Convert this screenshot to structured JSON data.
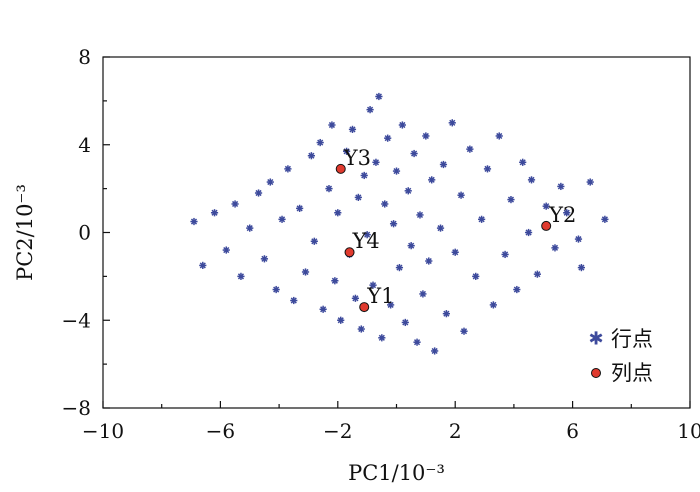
{
  "chart_data": {
    "type": "scatter",
    "title": "",
    "xlabel": "PC1/10⁻³",
    "ylabel": "PC2/10⁻³",
    "xlim": [
      -10,
      10
    ],
    "ylim": [
      -8,
      8
    ],
    "xticks": [
      -10,
      -6,
      -2,
      2,
      6,
      10
    ],
    "xtick_labels": [
      "−10",
      "−6",
      "−2",
      "2",
      "6",
      "10"
    ],
    "yticks": [
      -8,
      -4,
      0,
      4,
      8
    ],
    "ytick_labels": [
      "−8",
      "−4",
      "0",
      "4",
      "8"
    ],
    "grid": false,
    "legend": {
      "position": "bottom-right"
    },
    "series": [
      {
        "name": "行点",
        "marker": "star",
        "color": "#3d4a9c",
        "points": [
          [
            -6.9,
            0.5
          ],
          [
            -6.6,
            -1.5
          ],
          [
            -6.2,
            0.9
          ],
          [
            -5.8,
            -0.8
          ],
          [
            -5.5,
            1.3
          ],
          [
            -5.3,
            -2.0
          ],
          [
            -5.0,
            0.2
          ],
          [
            -4.7,
            1.8
          ],
          [
            -4.5,
            -1.2
          ],
          [
            -4.3,
            2.3
          ],
          [
            -4.1,
            -2.6
          ],
          [
            -3.9,
            0.6
          ],
          [
            -3.7,
            2.9
          ],
          [
            -3.5,
            -3.1
          ],
          [
            -3.3,
            1.1
          ],
          [
            -3.1,
            -1.8
          ],
          [
            -2.9,
            3.5
          ],
          [
            -2.8,
            -0.4
          ],
          [
            -2.6,
            4.1
          ],
          [
            -2.5,
            -3.5
          ],
          [
            -2.3,
            2.0
          ],
          [
            -2.2,
            4.9
          ],
          [
            -2.1,
            -2.2
          ],
          [
            -2.0,
            0.9
          ],
          [
            -1.9,
            -4.0
          ],
          [
            -1.7,
            3.7
          ],
          [
            -1.6,
            -1.0
          ],
          [
            -1.5,
            4.7
          ],
          [
            -1.4,
            -3.0
          ],
          [
            -1.3,
            1.6
          ],
          [
            -1.2,
            -4.4
          ],
          [
            -1.1,
            2.6
          ],
          [
            -1.0,
            -0.1
          ],
          [
            -0.9,
            5.6
          ],
          [
            -0.8,
            -2.4
          ],
          [
            -0.7,
            3.2
          ],
          [
            -0.6,
            6.2
          ],
          [
            -0.5,
            -4.8
          ],
          [
            -0.4,
            1.3
          ],
          [
            -0.3,
            4.3
          ],
          [
            -0.2,
            -3.3
          ],
          [
            -0.1,
            0.4
          ],
          [
            0.0,
            2.8
          ],
          [
            0.1,
            -1.6
          ],
          [
            0.2,
            4.9
          ],
          [
            0.3,
            -4.1
          ],
          [
            0.4,
            1.9
          ],
          [
            0.5,
            -0.6
          ],
          [
            0.6,
            3.6
          ],
          [
            0.7,
            -5.0
          ],
          [
            0.8,
            0.8
          ],
          [
            0.9,
            -2.8
          ],
          [
            1.0,
            4.4
          ],
          [
            1.1,
            -1.3
          ],
          [
            1.2,
            2.4
          ],
          [
            1.3,
            -5.4
          ],
          [
            1.5,
            0.2
          ],
          [
            1.6,
            3.1
          ],
          [
            1.7,
            -3.7
          ],
          [
            1.9,
            5.0
          ],
          [
            2.0,
            -0.9
          ],
          [
            2.2,
            1.7
          ],
          [
            2.3,
            -4.5
          ],
          [
            2.5,
            3.8
          ],
          [
            2.7,
            -2.0
          ],
          [
            2.9,
            0.6
          ],
          [
            3.1,
            2.9
          ],
          [
            3.3,
            -3.3
          ],
          [
            3.5,
            4.4
          ],
          [
            3.7,
            -1.0
          ],
          [
            3.9,
            1.5
          ],
          [
            4.1,
            -2.6
          ],
          [
            4.3,
            3.2
          ],
          [
            4.5,
            0.0
          ],
          [
            4.8,
            -1.9
          ],
          [
            5.1,
            1.2
          ],
          [
            5.4,
            -0.7
          ],
          [
            5.8,
            0.9
          ],
          [
            6.2,
            -0.3
          ],
          [
            6.6,
            2.3
          ],
          [
            7.1,
            0.6
          ],
          [
            6.3,
            -1.6
          ],
          [
            5.6,
            2.1
          ],
          [
            4.6,
            2.4
          ]
        ]
      },
      {
        "name": "列点",
        "marker": "circle",
        "color": "#e03a2e",
        "points": [
          {
            "label": "Y1",
            "x": -1.1,
            "y": -3.4
          },
          {
            "label": "Y2",
            "x": 5.1,
            "y": 0.3
          },
          {
            "label": "Y3",
            "x": -1.9,
            "y": 2.9
          },
          {
            "label": "Y4",
            "x": -1.6,
            "y": -0.9
          }
        ]
      }
    ]
  }
}
